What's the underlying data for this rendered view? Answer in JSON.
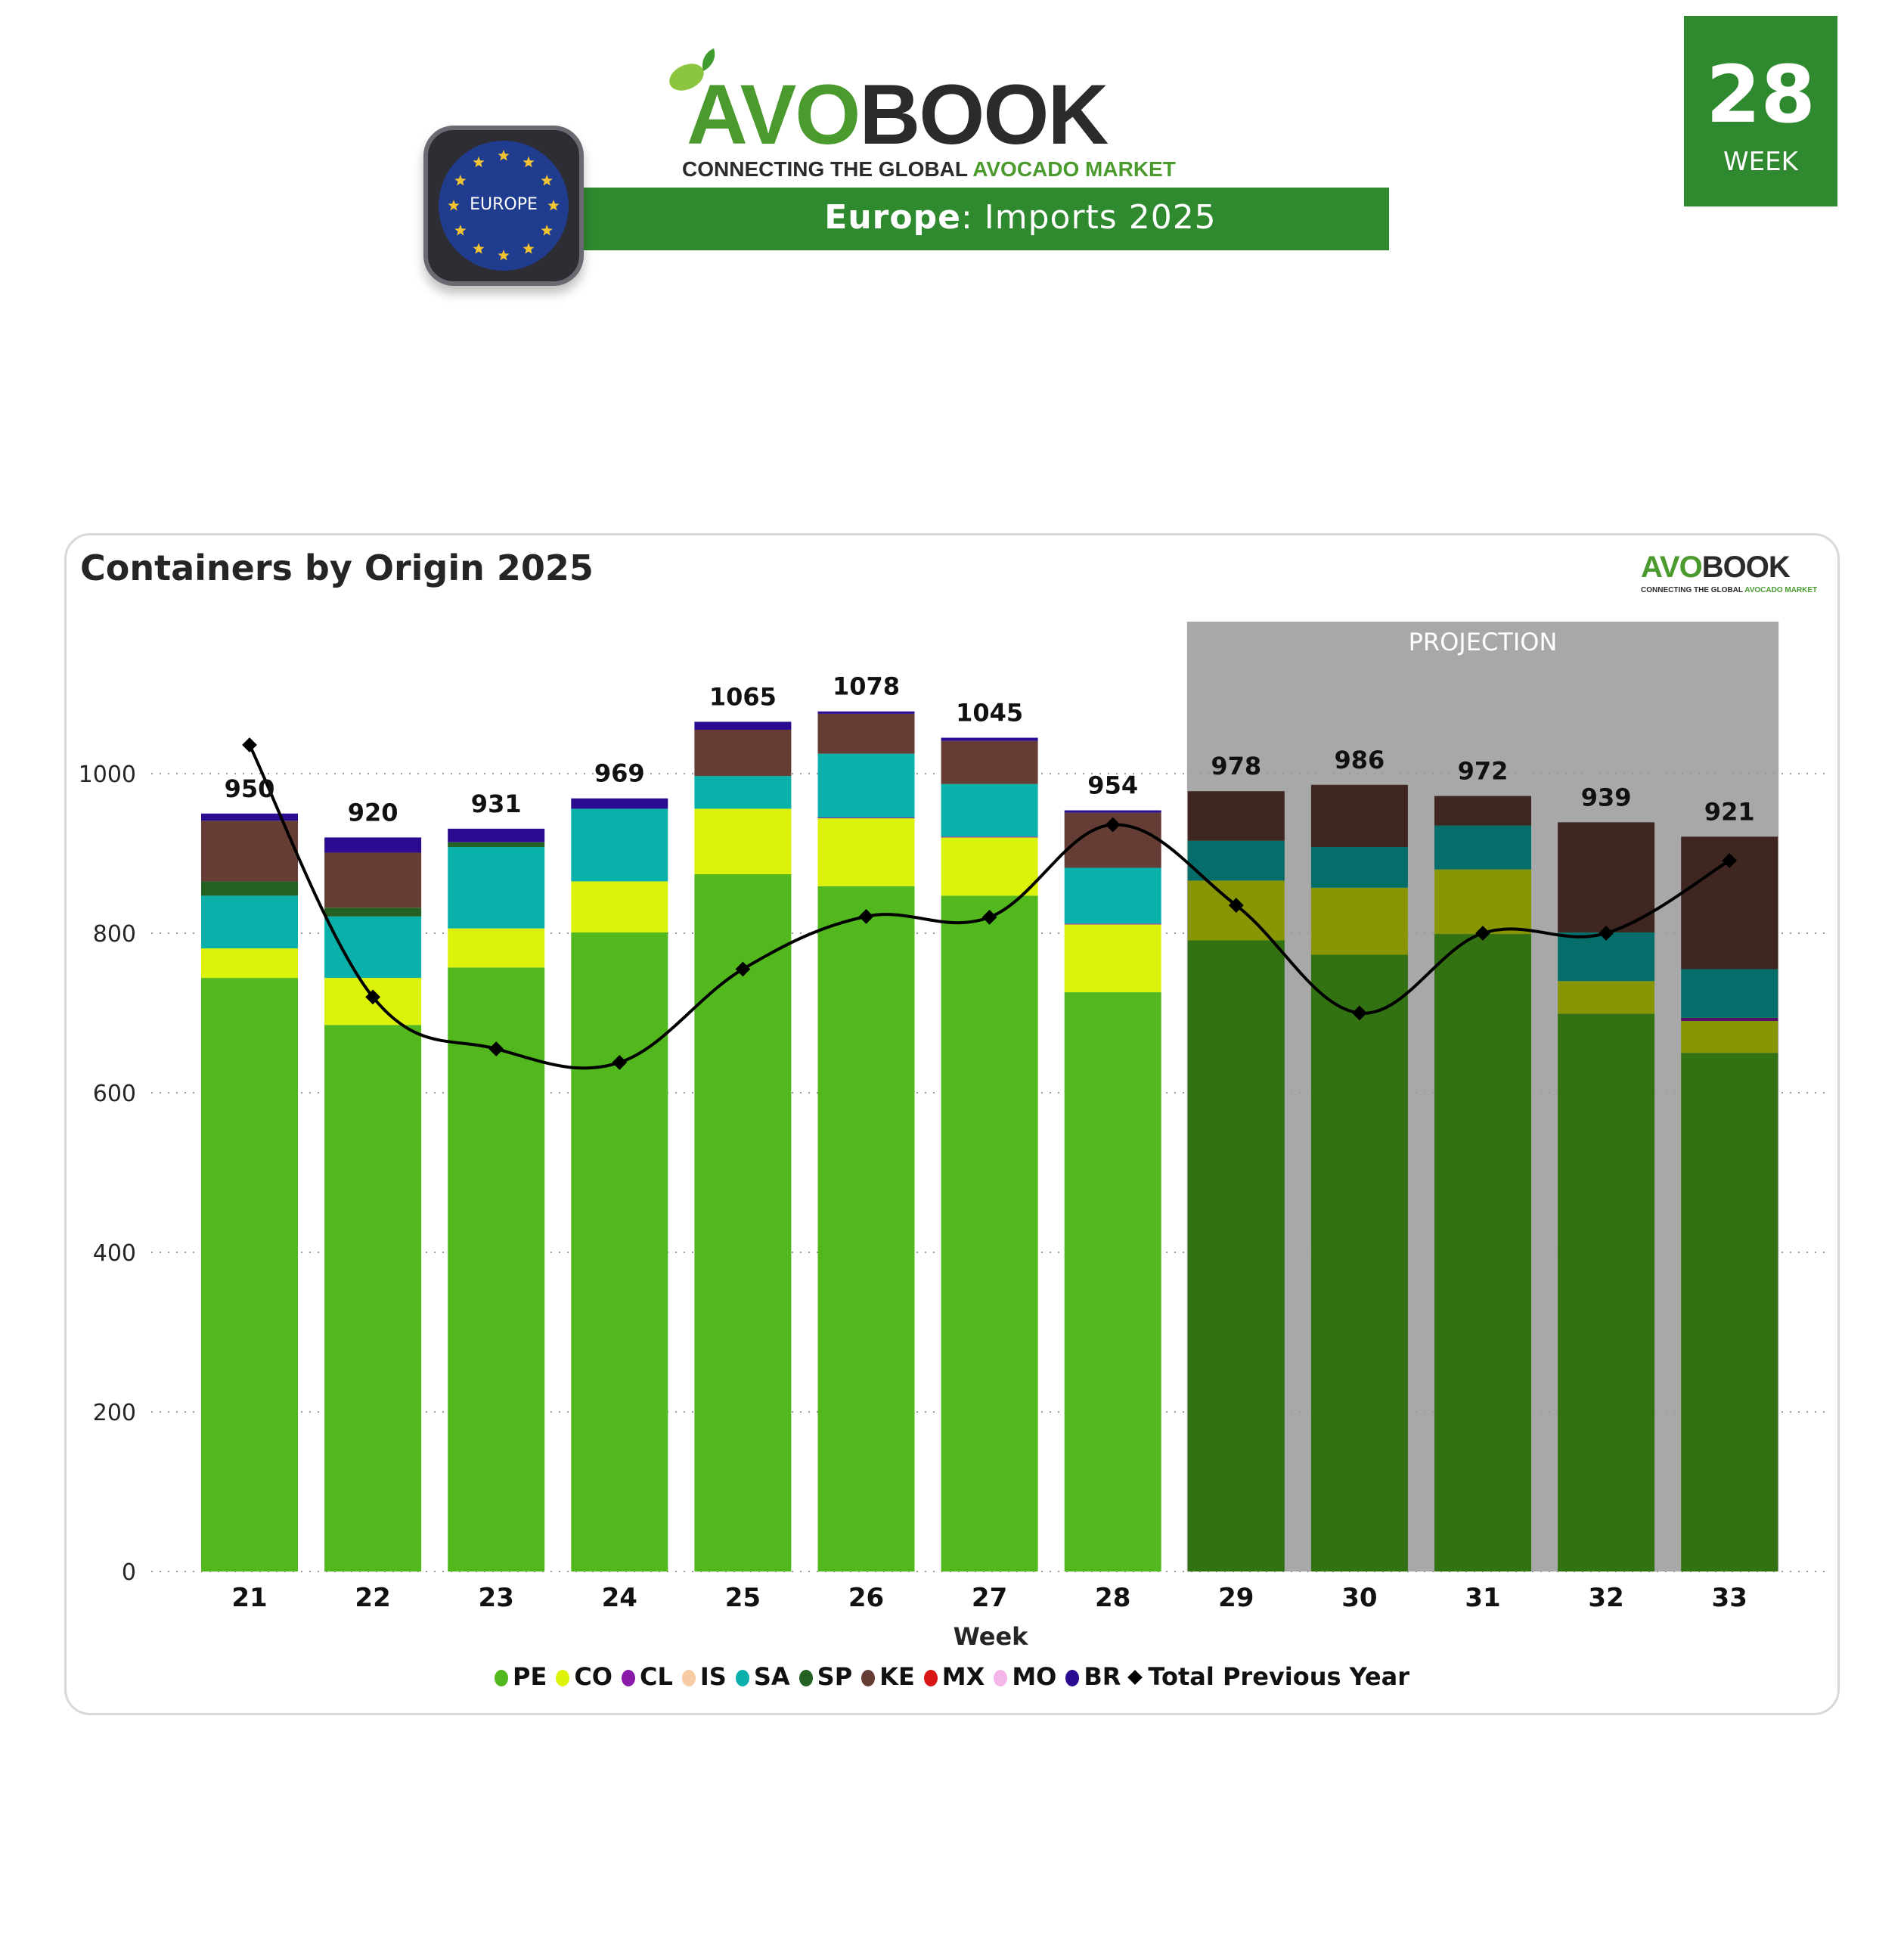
{
  "header": {
    "logo": {
      "brand_part1": "AVO",
      "brand_part2": "BOOK",
      "tagline_part1": "CONNECTING THE GLOBAL ",
      "tagline_part2": "AVOCADO MARKET",
      "leaf_icon": "leaf-icon"
    },
    "banner": {
      "region": "Europe",
      "rest": ": Imports 2025"
    },
    "region_badge": {
      "label": "EUROPE",
      "icon": "eu-flag-icon"
    },
    "week_box": {
      "number": "28",
      "label": "WEEK"
    }
  },
  "colors": {
    "brand_green": "#2f8a2f",
    "PE": "#52b81e",
    "CO": "#dcf20a",
    "CL": "#8a1aa8",
    "IS": "#f7cba3",
    "SA": "#0ab1ab",
    "SP": "#236022",
    "KE": "#653d34",
    "MX": "#d91515",
    "MO": "#f4b6e8",
    "BR": "#2b0b8f",
    "line": "#000000",
    "projection_bg": "#a8a8a8"
  },
  "card": {
    "title": "Containers by Origin 2025",
    "mini_logo": {
      "part1": "AVO",
      "part2": "BOOK",
      "tagline_part1": "CONNECTING THE GLOBAL ",
      "tagline_part2": "AVOCADO MARKET"
    }
  },
  "chart_data": {
    "type": "bar",
    "stacked": true,
    "title": "Containers by Origin 2025",
    "xlabel": "Week",
    "ylabel": "",
    "ylim": [
      0,
      1180
    ],
    "yticks": [
      0,
      200,
      400,
      600,
      800,
      1000
    ],
    "grid": true,
    "categories": [
      "21",
      "22",
      "23",
      "24",
      "25",
      "26",
      "27",
      "28",
      "29",
      "30",
      "31",
      "32",
      "33"
    ],
    "projection": {
      "label": "PROJECTION",
      "from_category": "29",
      "to_category": "33"
    },
    "totals": [
      950,
      920,
      931,
      969,
      1065,
      1078,
      1045,
      954,
      978,
      986,
      972,
      939,
      921
    ],
    "series": [
      {
        "name": "PE",
        "values": [
          744,
          685,
          757,
          801,
          874,
          859,
          847,
          726,
          791,
          773,
          799,
          699,
          650
        ]
      },
      {
        "name": "CO",
        "values": [
          37,
          59,
          49,
          64,
          82,
          85,
          73,
          85,
          75,
          84,
          81,
          41,
          40
        ]
      },
      {
        "name": "CL",
        "values": [
          0,
          0,
          0,
          0,
          0,
          1,
          1,
          1,
          0,
          0,
          0,
          0,
          4
        ]
      },
      {
        "name": "IS",
        "values": [
          0,
          0,
          0,
          0,
          0,
          0,
          0,
          0,
          0,
          0,
          0,
          0,
          0
        ]
      },
      {
        "name": "SA",
        "values": [
          66,
          77,
          102,
          91,
          41,
          80,
          66,
          70,
          50,
          51,
          55,
          61,
          61
        ]
      },
      {
        "name": "SP",
        "values": [
          18,
          11,
          6,
          0,
          0,
          0,
          0,
          0,
          0,
          0,
          0,
          0,
          0
        ]
      },
      {
        "name": "KE",
        "values": [
          76,
          69,
          0,
          0,
          58,
          50,
          54,
          69,
          62,
          78,
          37,
          138,
          166
        ]
      },
      {
        "name": "MX",
        "values": [
          0,
          0,
          0,
          0,
          0,
          0,
          0,
          0,
          0,
          0,
          0,
          0,
          0
        ]
      },
      {
        "name": "MO",
        "values": [
          0,
          0,
          0,
          0,
          0,
          0,
          0,
          0,
          0,
          0,
          0,
          0,
          0
        ]
      },
      {
        "name": "BR",
        "values": [
          9,
          19,
          17,
          13,
          10,
          3,
          4,
          3,
          0,
          0,
          0,
          0,
          0
        ]
      }
    ],
    "line_series": {
      "name": "Total Previous Year",
      "values": [
        1036,
        720,
        655,
        638,
        755,
        821,
        820,
        936,
        835,
        700,
        800,
        800,
        891
      ]
    },
    "legend": [
      "PE",
      "CO",
      "CL",
      "IS",
      "SA",
      "SP",
      "KE",
      "MX",
      "MO",
      "BR",
      "Total Previous Year"
    ],
    "legend_position": "bottom-center"
  }
}
